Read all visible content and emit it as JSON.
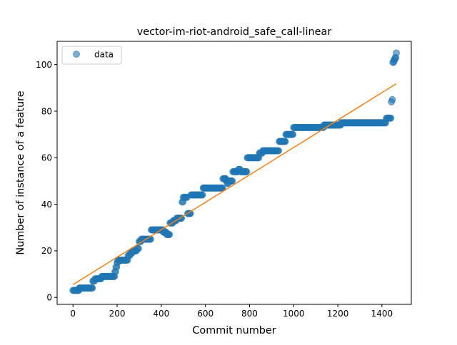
{
  "chart_data": {
    "type": "scatter",
    "title": "vector-im-riot-android_safe_call-linear",
    "xlabel": "Commit number",
    "ylabel": "Number of instance of a feature",
    "xlim": [
      -72,
      1533
    ],
    "ylim": [
      -3,
      110
    ],
    "xticks": [
      0,
      200,
      400,
      600,
      800,
      1000,
      1200,
      1400
    ],
    "yticks": [
      0,
      20,
      40,
      60,
      80,
      100
    ],
    "grid": false,
    "legend": {
      "position": "upper-left",
      "entries": [
        "data"
      ]
    },
    "colors": {
      "data": "#1f77b4",
      "fit": "#ff7f0e"
    },
    "series": [
      {
        "name": "data",
        "kind": "scatter",
        "points": [
          [
            0,
            3
          ],
          [
            10,
            3
          ],
          [
            20,
            3
          ],
          [
            28,
            4
          ],
          [
            40,
            4
          ],
          [
            55,
            4
          ],
          [
            70,
            4
          ],
          [
            85,
            4
          ],
          [
            90,
            7
          ],
          [
            100,
            8
          ],
          [
            110,
            8
          ],
          [
            120,
            8
          ],
          [
            130,
            9
          ],
          [
            145,
            9
          ],
          [
            160,
            9
          ],
          [
            175,
            9
          ],
          [
            185,
            9
          ],
          [
            190,
            11
          ],
          [
            195,
            13
          ],
          [
            200,
            15
          ],
          [
            205,
            16
          ],
          [
            220,
            16
          ],
          [
            240,
            16
          ],
          [
            250,
            18
          ],
          [
            260,
            19
          ],
          [
            270,
            20
          ],
          [
            280,
            20
          ],
          [
            290,
            21
          ],
          [
            300,
            24
          ],
          [
            310,
            25
          ],
          [
            330,
            25
          ],
          [
            345,
            25
          ],
          [
            355,
            29
          ],
          [
            375,
            29
          ],
          [
            390,
            29
          ],
          [
            405,
            29
          ],
          [
            410,
            28
          ],
          [
            425,
            27
          ],
          [
            440,
            32
          ],
          [
            455,
            33
          ],
          [
            470,
            34
          ],
          [
            485,
            34
          ],
          [
            495,
            41
          ],
          [
            500,
            43
          ],
          [
            510,
            43
          ],
          [
            520,
            36
          ],
          [
            535,
            44
          ],
          [
            560,
            44
          ],
          [
            580,
            44
          ],
          [
            590,
            47
          ],
          [
            610,
            47
          ],
          [
            630,
            47
          ],
          [
            645,
            47
          ],
          [
            660,
            47
          ],
          [
            675,
            47
          ],
          [
            680,
            51
          ],
          [
            695,
            50
          ],
          [
            700,
            49
          ],
          [
            705,
            50
          ],
          [
            715,
            50
          ],
          [
            725,
            54
          ],
          [
            740,
            54
          ],
          [
            750,
            55
          ],
          [
            760,
            54
          ],
          [
            775,
            54
          ],
          [
            790,
            60
          ],
          [
            805,
            60
          ],
          [
            820,
            60
          ],
          [
            835,
            60
          ],
          [
            845,
            62
          ],
          [
            860,
            63
          ],
          [
            880,
            63
          ],
          [
            900,
            63
          ],
          [
            915,
            63
          ],
          [
            925,
            63
          ],
          [
            935,
            67
          ],
          [
            950,
            67
          ],
          [
            965,
            70
          ],
          [
            980,
            70
          ],
          [
            990,
            70
          ],
          [
            1000,
            73
          ],
          [
            1020,
            73
          ],
          [
            1040,
            73
          ],
          [
            1060,
            73
          ],
          [
            1080,
            73
          ],
          [
            1100,
            73
          ],
          [
            1120,
            73
          ],
          [
            1140,
            74
          ],
          [
            1160,
            74
          ],
          [
            1180,
            74
          ],
          [
            1200,
            74
          ],
          [
            1215,
            75
          ],
          [
            1240,
            75
          ],
          [
            1260,
            75
          ],
          [
            1280,
            75
          ],
          [
            1300,
            75
          ],
          [
            1320,
            75
          ],
          [
            1340,
            75
          ],
          [
            1360,
            75
          ],
          [
            1380,
            75
          ],
          [
            1400,
            75
          ],
          [
            1410,
            75
          ],
          [
            1420,
            77
          ],
          [
            1430,
            77
          ],
          [
            1440,
            77
          ],
          [
            1443,
            84
          ],
          [
            1447,
            85
          ],
          [
            1450,
            101
          ],
          [
            1455,
            102
          ],
          [
            1460,
            103
          ],
          [
            1465,
            105
          ]
        ]
      },
      {
        "name": "",
        "kind": "line",
        "points": [
          [
            0,
            5.5
          ],
          [
            1465,
            91.8
          ]
        ]
      }
    ]
  }
}
